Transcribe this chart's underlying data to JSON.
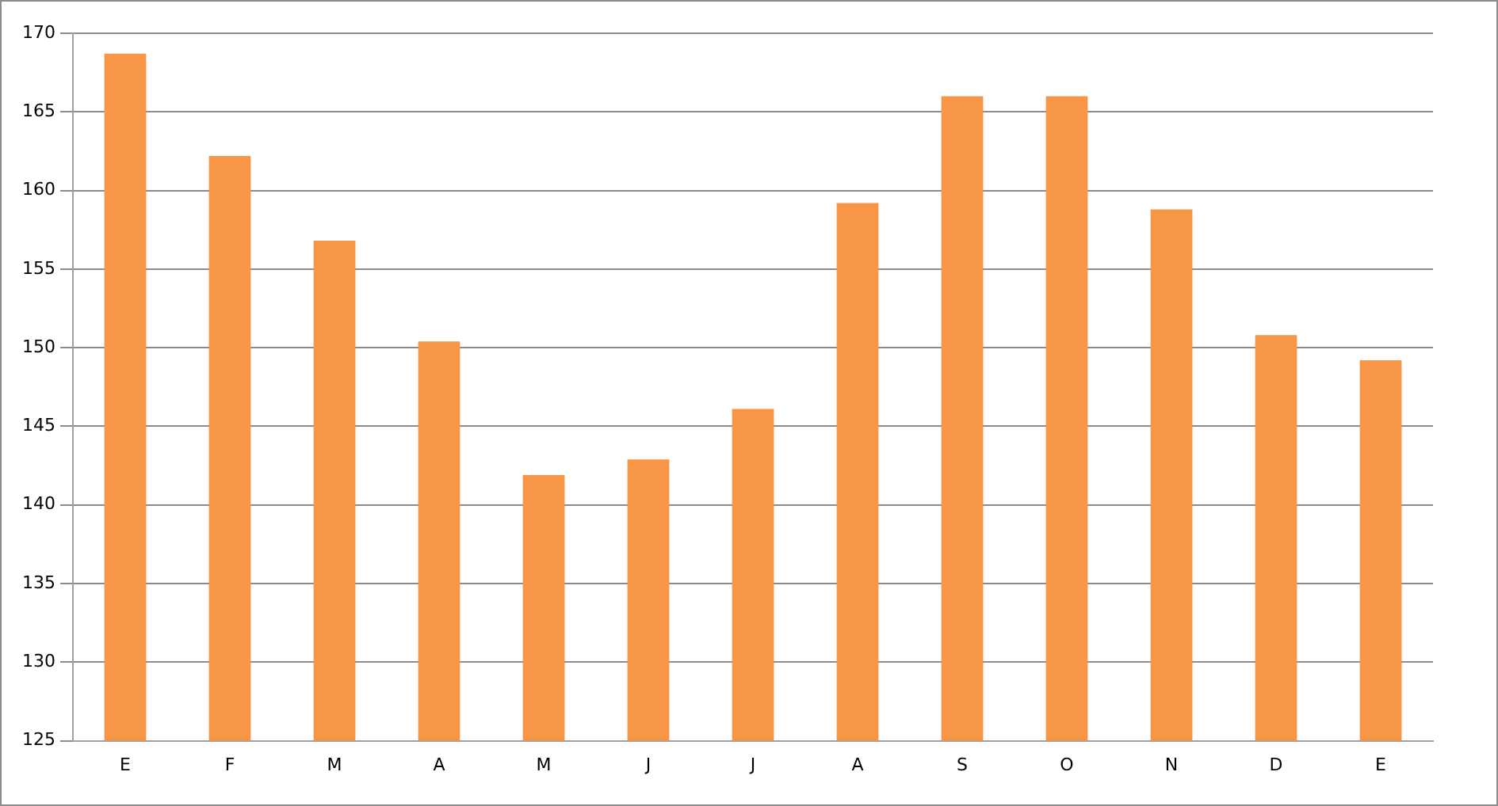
{
  "chart_data": {
    "type": "bar",
    "categories": [
      "E",
      "F",
      "M",
      "A",
      "M",
      "J",
      "J",
      "A",
      "S",
      "O",
      "N",
      "D",
      "E"
    ],
    "values": [
      168.7,
      162.2,
      156.8,
      150.4,
      141.9,
      142.9,
      146.1,
      159.2,
      166.0,
      166.0,
      158.8,
      150.8,
      149.2
    ],
    "color": "#f79646",
    "ylim": [
      125,
      170
    ],
    "yticks": [
      125,
      130,
      135,
      140,
      145,
      150,
      155,
      160,
      165,
      170
    ],
    "grid": "y",
    "legend": false
  }
}
